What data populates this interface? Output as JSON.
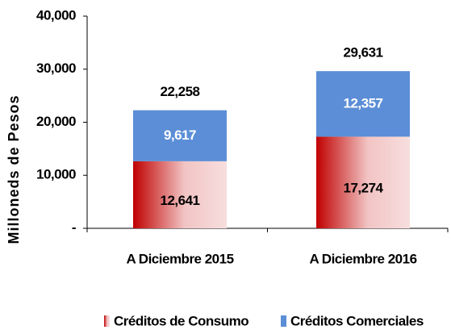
{
  "chart_data": {
    "type": "stacked_bar",
    "categories": [
      "A Diciembre 2015",
      "A Diciembre 2016"
    ],
    "series": [
      {
        "name": "Créditos de Consumo",
        "color": "#c00000",
        "values": [
          12641,
          17274
        ],
        "value_labels": [
          "12,641",
          "17,274"
        ]
      },
      {
        "name": "Créditos Comerciales",
        "color": "#5b8ed6",
        "values": [
          9617,
          12357
        ],
        "value_labels": [
          "9,617",
          "12,357"
        ]
      }
    ],
    "totals": [
      22258,
      29631
    ],
    "total_labels": [
      "22,258",
      "29,631"
    ],
    "ylabel": "Milloneds de Pesos",
    "ylim": [
      0,
      40000
    ],
    "yticks": [
      {
        "value": 0,
        "label": "-"
      },
      {
        "value": 10000,
        "label": "10,000"
      },
      {
        "value": 20000,
        "label": "20,000"
      },
      {
        "value": 30000,
        "label": "30,000"
      },
      {
        "value": 40000,
        "label": "40,000"
      }
    ],
    "legend": "bottom"
  }
}
